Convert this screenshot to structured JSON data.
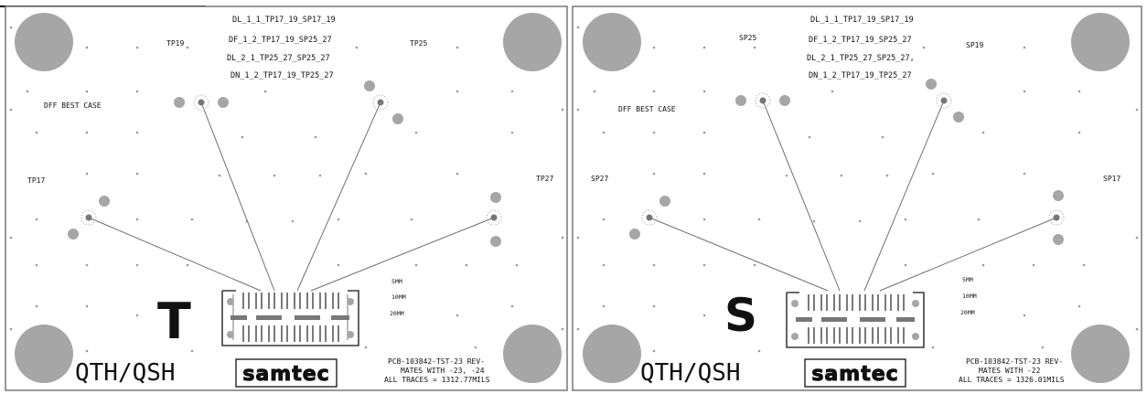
{
  "title": "",
  "colors": {
    "board_border": "#777777",
    "circle": "#a6a6a6",
    "trace": "#6f6f6f",
    "dot": "#9a9a9a",
    "text": "#111111"
  },
  "panels": [
    {
      "id": "left",
      "net_labels": [
        "DL_1_1_TP17_19_SP17_19",
        "DF_1_2_TP17_19_SP25_27",
        "DL_2_1_TP25_27_SP25_27",
        "DN_1_2_TP17_19_TP25_27"
      ],
      "corner_labels": {
        "top_left": "TP19",
        "top_right": "TP25",
        "left": "TP17",
        "right": "TP27"
      },
      "case_label": "DFF BEST CASE",
      "letter": "T",
      "product": "QTH/QSH",
      "logo": "samtec",
      "length_labels": [
        "5MM",
        "10MM",
        "20MM"
      ],
      "notes": [
        "PCB-103842-TST-23 REV-",
        "MATES WITH -23, -24",
        "ALL TRACES = 1312.77MILS"
      ]
    },
    {
      "id": "right",
      "net_labels": [
        "DL_1_1_TP17_19_SP17_19",
        "DF_1_2_TP17_19_SP25_27",
        "DL_2_1_TP25_27_SP25_27,",
        "DN_1_2_TP17_19_TP25_27"
      ],
      "corner_labels": {
        "top_left": "SP25",
        "top_right": "SP19",
        "left": "SP27",
        "right": "SP17"
      },
      "case_label": "DFF BEST CASE",
      "letter": "S",
      "product": "QTH/QSH",
      "logo": "samtec",
      "length_labels": [
        "5MM",
        "10MM",
        "20MM"
      ],
      "notes": [
        "PCB-103842-TST-23 REV-",
        "MATES WITH -22",
        "ALL TRACES = 1326.01MILS"
      ]
    }
  ]
}
